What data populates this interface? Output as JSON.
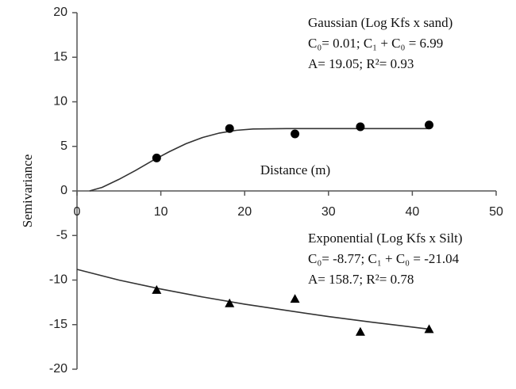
{
  "chart_data": {
    "type": "scatter",
    "x_label": "Distance (m)",
    "y_label": "Semivariance",
    "xlim": [
      0,
      50
    ],
    "ylim": [
      -20,
      20
    ],
    "xticks": [
      0,
      10,
      20,
      30,
      40,
      50
    ],
    "yticks": [
      -20,
      -15,
      -10,
      -5,
      0,
      5,
      10,
      15,
      20
    ],
    "series": [
      {
        "color": "#000000",
        "marker": "circle",
        "x": [
          9.5,
          18.2,
          26,
          33.8,
          42
        ],
        "values": [
          3.7,
          7.0,
          6.4,
          7.2,
          7.4
        ]
      },
      {
        "color": "#000000",
        "marker": "triangle",
        "x": [
          9.5,
          18.2,
          26,
          33.8,
          42
        ],
        "values": [
          -11.1,
          -12.6,
          -12.1,
          -15.8,
          -15.5
        ]
      }
    ],
    "fits": [
      {
        "color": "#333333",
        "x": [
          1.5,
          3,
          5,
          7,
          9,
          11,
          13,
          15,
          17,
          19,
          21,
          25,
          30,
          35,
          42
        ],
        "values": [
          0,
          0.4,
          1.3,
          2.3,
          3.4,
          4.4,
          5.3,
          6.0,
          6.5,
          6.8,
          6.95,
          7.0,
          7.0,
          7.0,
          7.0
        ]
      },
      {
        "color": "#333333",
        "x": [
          0,
          5,
          10,
          15,
          20,
          25,
          30,
          35,
          42
        ],
        "values": [
          -8.8,
          -10.0,
          -11.0,
          -11.9,
          -12.7,
          -13.4,
          -14.1,
          -14.7,
          -15.5
        ]
      }
    ],
    "annotations": [
      {
        "lines": [
          "Gaussian (Log Kfs x sand)",
          "C₀= 0.01; C₁ + C₀ = 6.99",
          "A= 19.05; R²= 0.93"
        ]
      },
      {
        "lines": [
          "Exponential (Log Kfs x Silt)",
          "C₀= -8.77; C₁ + C₀ = -21.04",
          "A= 158.7; R²= 0.78"
        ]
      }
    ]
  }
}
